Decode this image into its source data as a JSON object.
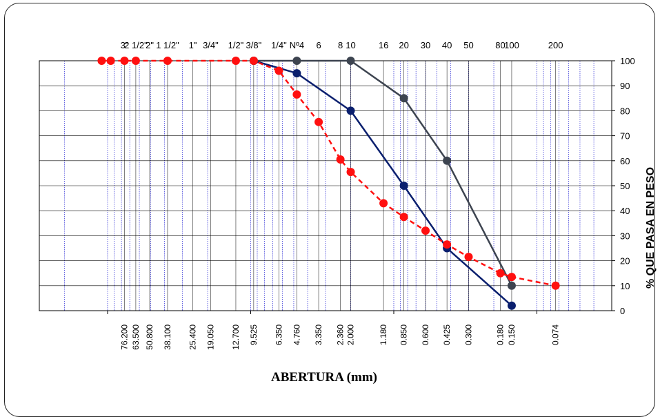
{
  "chart_data": {
    "type": "line",
    "xlabel": "ABERTURA (mm)",
    "ylabel": "% QUE PASA EN PESO",
    "x_scale": "log",
    "x_direction": "reversed",
    "xlim": [
      300,
      0.03
    ],
    "ylim": [
      0,
      100
    ],
    "y_ticks": [
      0,
      10,
      20,
      30,
      40,
      50,
      60,
      70,
      80,
      90,
      100
    ],
    "grid": true,
    "colors": {
      "grid": "#0000cc",
      "series_1": "#0a1f6e",
      "series_2": "#3d4450",
      "series_3": "#ff1010"
    },
    "sieve_ticks": [
      {
        "name": "3\"",
        "mm": 76.2,
        "label": "76.200"
      },
      {
        "name": "2 1/2\"",
        "mm": 63.5,
        "label": "63.500"
      },
      {
        "name": "2\"",
        "mm": 50.8,
        "label": "50.800"
      },
      {
        "name": "1 1/2\"",
        "mm": 38.1,
        "label": "38.100"
      },
      {
        "name": "1\"",
        "mm": 25.4,
        "label": "25.400"
      },
      {
        "name": "3/4\"",
        "mm": 19.05,
        "label": "19.050"
      },
      {
        "name": "1/2\"",
        "mm": 12.7,
        "label": "12.700"
      },
      {
        "name": "3/8\"",
        "mm": 9.525,
        "label": "9.525"
      },
      {
        "name": "1/4\"",
        "mm": 6.35,
        "label": "6.350"
      },
      {
        "name": "Nº4",
        "mm": 4.76,
        "label": "4.760"
      },
      {
        "name": "6",
        "mm": 3.35,
        "label": "3.350"
      },
      {
        "name": "8",
        "mm": 2.36,
        "label": "2.360"
      },
      {
        "name": "10",
        "mm": 2.0,
        "label": "2.000"
      },
      {
        "name": "16",
        "mm": 1.18,
        "label": "1.180"
      },
      {
        "name": "20",
        "mm": 0.85,
        "label": "0.850"
      },
      {
        "name": "30",
        "mm": 0.6,
        "label": "0.600"
      },
      {
        "name": "40",
        "mm": 0.425,
        "label": "0.425"
      },
      {
        "name": "50",
        "mm": 0.3,
        "label": "0.300"
      },
      {
        "name": "80",
        "mm": 0.18,
        "label": "0.180"
      },
      {
        "name": "100",
        "mm": 0.15,
        "label": "0.150"
      },
      {
        "name": "200",
        "mm": 0.074,
        "label": "0.074"
      }
    ],
    "series": [
      {
        "color_key": "series_1",
        "line_style": "solid",
        "points": [
          [
            9.525,
            100
          ],
          [
            4.76,
            95
          ],
          [
            2.0,
            80
          ],
          [
            0.85,
            50
          ],
          [
            0.425,
            25
          ],
          [
            0.15,
            2
          ]
        ]
      },
      {
        "color_key": "series_2",
        "line_style": "solid",
        "points": [
          [
            9.525,
            100
          ],
          [
            4.76,
            100
          ],
          [
            2.0,
            100
          ],
          [
            0.85,
            85
          ],
          [
            0.425,
            60
          ],
          [
            0.15,
            10
          ]
        ]
      },
      {
        "color_key": "series_3",
        "line_style": "dashed",
        "points": [
          [
            110,
            100
          ],
          [
            95,
            100
          ],
          [
            76.2,
            100
          ],
          [
            63.5,
            100
          ],
          [
            38.1,
            100
          ],
          [
            12.7,
            100
          ],
          [
            9.525,
            100
          ],
          [
            6.35,
            96
          ],
          [
            4.76,
            86.5
          ],
          [
            3.35,
            75.5
          ],
          [
            2.36,
            60.5
          ],
          [
            2.0,
            55.5
          ],
          [
            1.18,
            43
          ],
          [
            0.85,
            37.5
          ],
          [
            0.6,
            32
          ],
          [
            0.425,
            26.5
          ],
          [
            0.3,
            21.5
          ],
          [
            0.18,
            15
          ],
          [
            0.15,
            13.5
          ],
          [
            0.074,
            10
          ]
        ]
      }
    ]
  }
}
